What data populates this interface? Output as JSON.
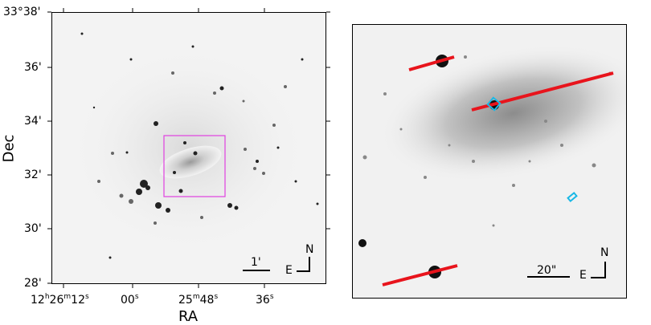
{
  "left_panel": {
    "axis_x_label": "RA",
    "axis_y_label": "Dec",
    "y_ticks": [
      "33°38'",
      "36'",
      "34'",
      "32'",
      "30'",
      "28'"
    ],
    "x_ticks": [
      {
        "h": "12",
        "m": "26",
        "s": "12",
        "hs": "h",
        "ms": "m",
        "ss": "s"
      },
      {
        "s": "00",
        "ss": "s"
      },
      {
        "m": "25",
        "s": "48",
        "ms": "m",
        "ss": "s"
      },
      {
        "s": "36",
        "ss": "s"
      }
    ],
    "scale_label": "1'",
    "compass_n": "N",
    "compass_e": "E",
    "box_color": "#e040e0"
  },
  "right_panel": {
    "scale_label": "20\"",
    "compass_n": "N",
    "compass_e": "E",
    "slit_color": "#e8141c",
    "marker_color": "#19b8e6"
  }
}
